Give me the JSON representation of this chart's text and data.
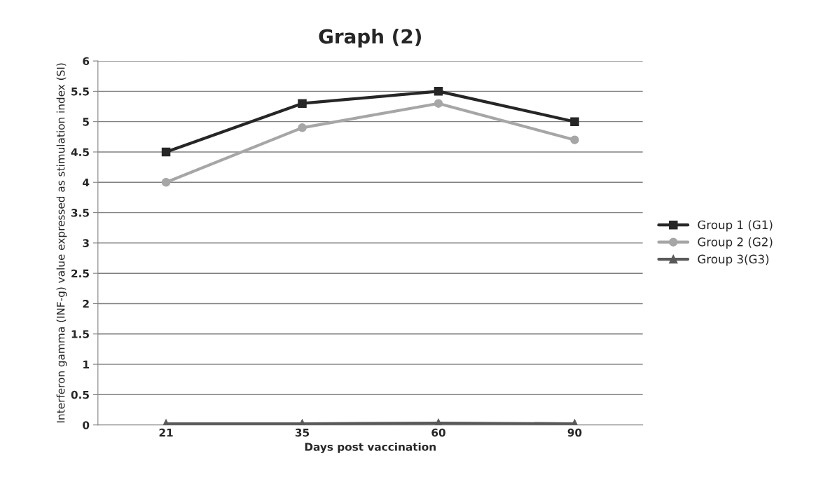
{
  "chart_data": {
    "type": "line",
    "title": "Graph (2)",
    "xlabel": "Days post vaccination",
    "ylabel": "Interferon gamma (INF-g) value expressed as stimulation index (SI)",
    "categories": [
      "21",
      "35",
      "60",
      "90"
    ],
    "series": [
      {
        "name": "Group 1 (G1)",
        "color": "#262626",
        "marker": "square",
        "values": [
          4.5,
          5.3,
          5.5,
          5.0
        ]
      },
      {
        "name": "Group 2 (G2)",
        "color": "#a6a6a6",
        "marker": "circle",
        "values": [
          4.0,
          4.9,
          5.3,
          4.7
        ]
      },
      {
        "name": "Group 3(G3)",
        "color": "#595959",
        "marker": "triangle",
        "values": [
          0.02,
          0.02,
          0.03,
          0.02
        ]
      }
    ],
    "ylim": [
      0,
      6
    ],
    "yticks": [
      0,
      0.5,
      1,
      1.5,
      2,
      2.5,
      3,
      3.5,
      4,
      4.5,
      5,
      5.5,
      6
    ],
    "grid": "y",
    "legend": "right",
    "line_style": "solid"
  }
}
